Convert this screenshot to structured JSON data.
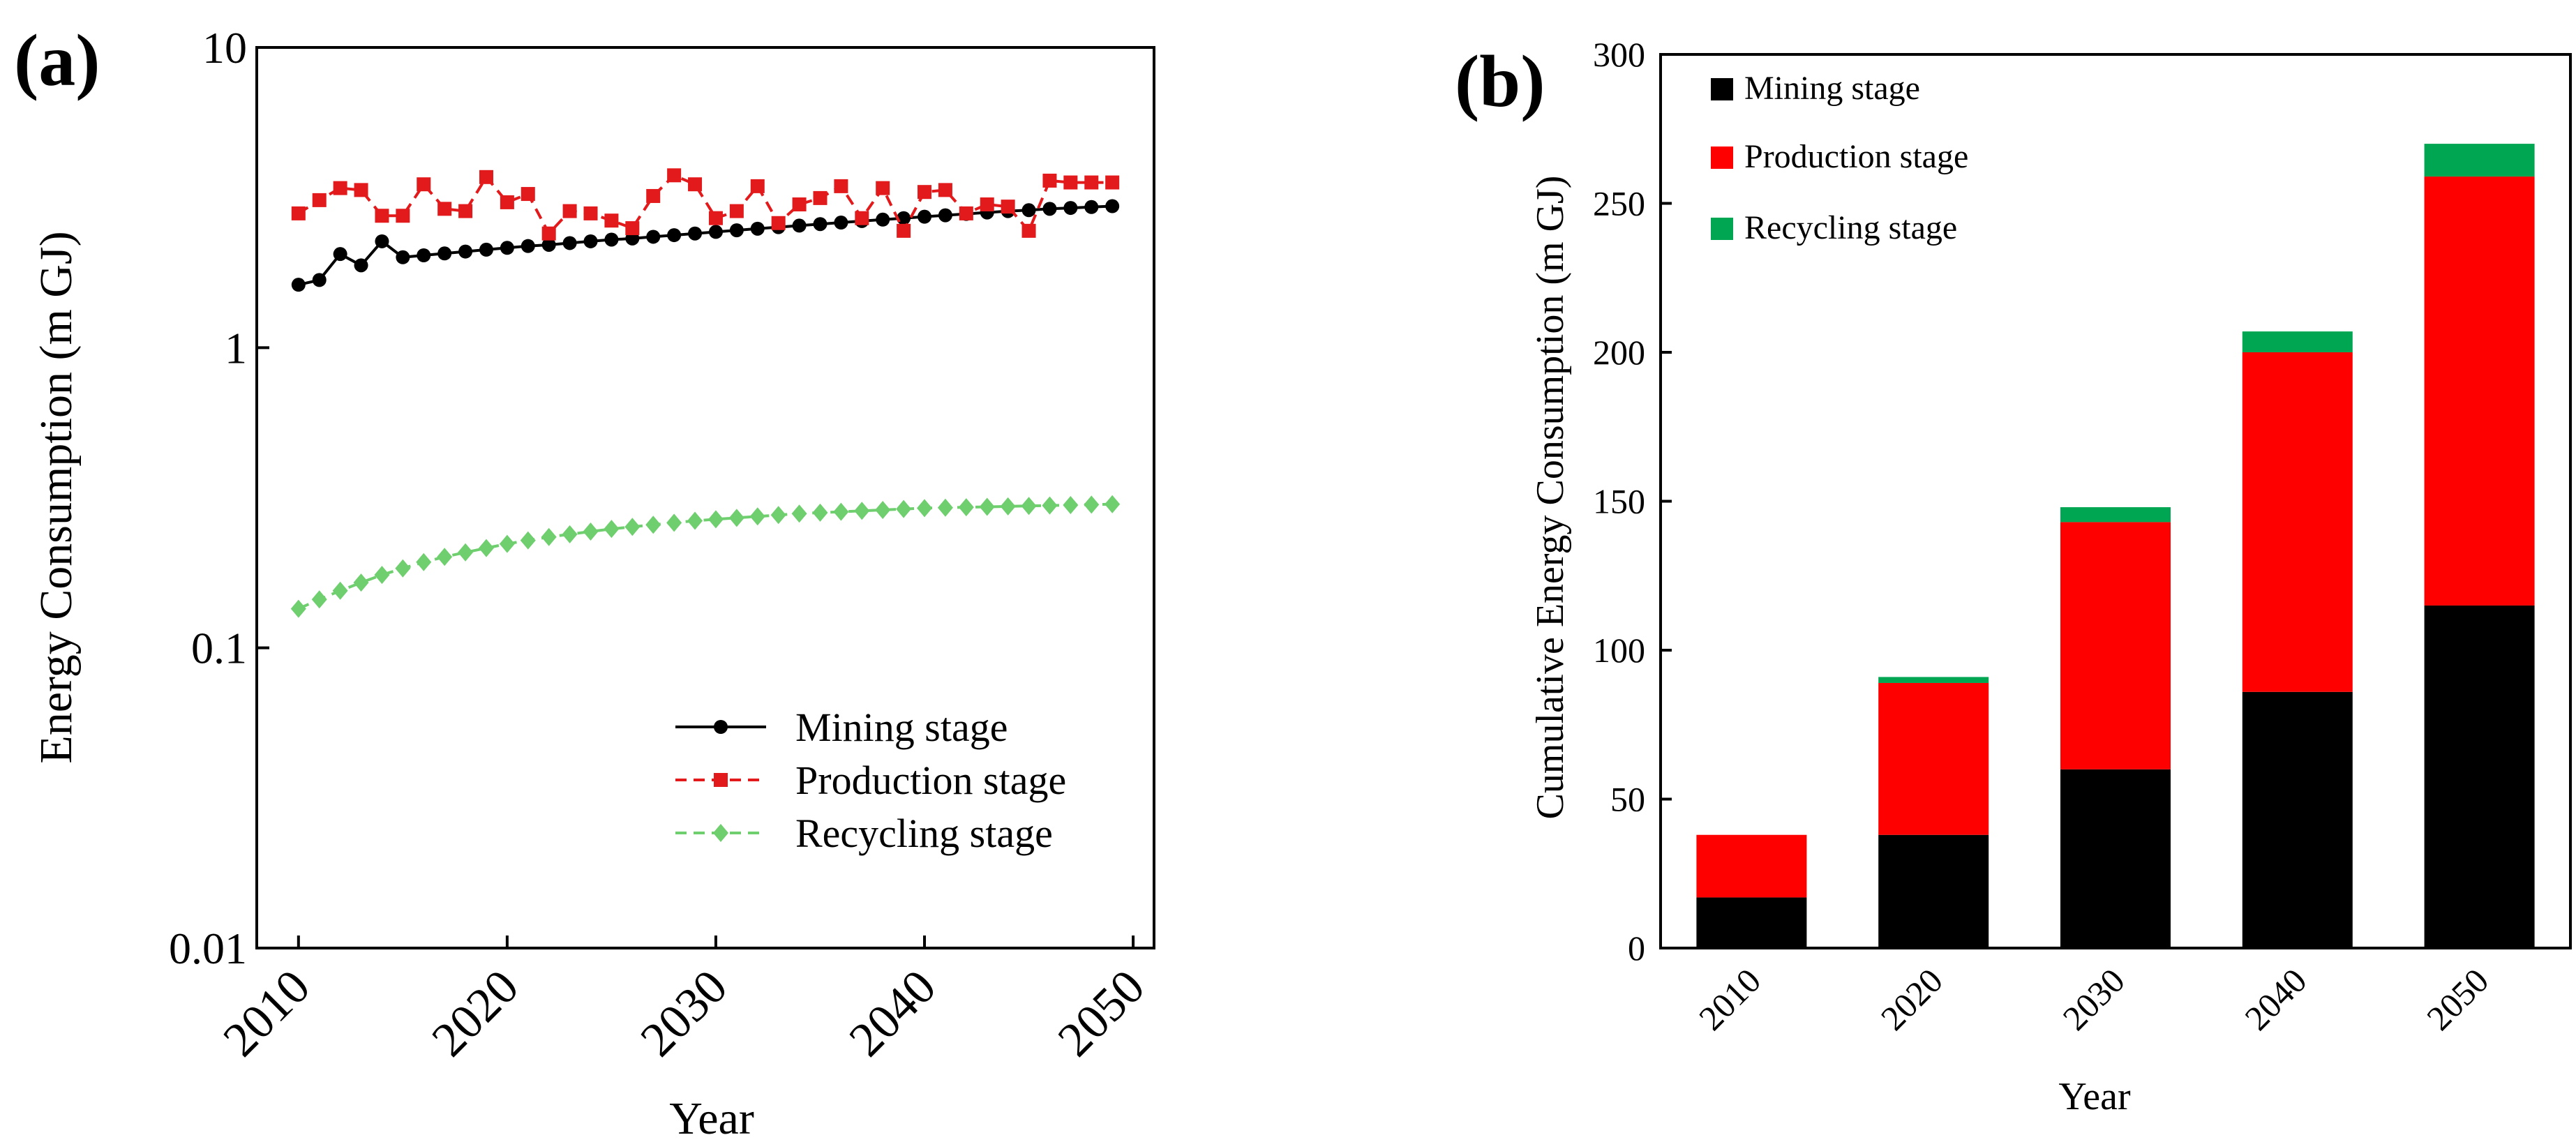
{
  "figure": {
    "panel_a_label": "(a)",
    "panel_b_label": "(b)"
  },
  "chart_data": [
    {
      "type": "line",
      "panel": "(a)",
      "title": "",
      "xlabel": "Year",
      "ylabel": "Energy Consumption (m GJ)",
      "yscale": "log",
      "ylim": [
        0.01,
        10
      ],
      "xlim": [
        2008,
        2051
      ],
      "yticks": [
        0.01,
        0.1,
        1,
        10
      ],
      "ytick_labels": [
        "0.01",
        "0.1",
        "1",
        "10"
      ],
      "xticks": [
        2010,
        2020,
        2030,
        2040,
        2050
      ],
      "xtick_labels": [
        "2010",
        "2020",
        "2030",
        "2040",
        "2050"
      ],
      "grid": false,
      "legend_position": "bottom-right",
      "x": [
        2010,
        2011,
        2012,
        2013,
        2014,
        2015,
        2016,
        2017,
        2018,
        2019,
        2020,
        2021,
        2022,
        2023,
        2024,
        2025,
        2026,
        2027,
        2028,
        2029,
        2030,
        2031,
        2032,
        2033,
        2034,
        2035,
        2036,
        2037,
        2038,
        2039,
        2040,
        2041,
        2042,
        2043,
        2044,
        2045,
        2046,
        2047,
        2048,
        2049
      ],
      "series": [
        {
          "name": "Mining stage",
          "color": "#000000",
          "line_style": "solid",
          "marker": "circle",
          "values": [
            1.62,
            1.68,
            2.05,
            1.88,
            2.26,
            2.0,
            2.03,
            2.06,
            2.09,
            2.12,
            2.15,
            2.18,
            2.2,
            2.23,
            2.26,
            2.29,
            2.31,
            2.34,
            2.37,
            2.4,
            2.43,
            2.46,
            2.49,
            2.52,
            2.55,
            2.58,
            2.61,
            2.64,
            2.67,
            2.7,
            2.73,
            2.76,
            2.79,
            2.82,
            2.85,
            2.87,
            2.9,
            2.92,
            2.94,
            2.96
          ]
        },
        {
          "name": "Production stage",
          "color": "#e31a1c",
          "line_style": "dashed",
          "marker": "square",
          "values": [
            2.8,
            3.1,
            3.4,
            3.35,
            2.75,
            2.75,
            3.5,
            2.9,
            2.85,
            3.7,
            3.05,
            3.25,
            2.4,
            2.85,
            2.8,
            2.65,
            2.5,
            3.2,
            3.75,
            3.5,
            2.7,
            2.85,
            3.45,
            2.6,
            3.0,
            3.15,
            3.45,
            2.7,
            3.4,
            2.45,
            3.3,
            3.35,
            2.8,
            3.0,
            2.95,
            2.45,
            3.6,
            3.55,
            3.55,
            3.55
          ]
        },
        {
          "name": "Recycling stage",
          "color": "#6fcf6f",
          "line_style": "dashed",
          "marker": "diamond",
          "values": [
            0.135,
            0.145,
            0.155,
            0.165,
            0.175,
            0.184,
            0.193,
            0.201,
            0.208,
            0.215,
            0.222,
            0.228,
            0.234,
            0.239,
            0.244,
            0.249,
            0.253,
            0.257,
            0.261,
            0.265,
            0.268,
            0.271,
            0.274,
            0.277,
            0.28,
            0.282,
            0.284,
            0.286,
            0.288,
            0.29,
            0.292,
            0.293,
            0.294,
            0.295,
            0.296,
            0.297,
            0.298,
            0.299,
            0.3,
            0.301
          ]
        }
      ]
    },
    {
      "type": "bar",
      "stacked": true,
      "panel": "(b)",
      "title": "",
      "xlabel": "Year",
      "ylabel": "Cumulative Energy Consumption (m GJ)",
      "ylim": [
        0,
        300
      ],
      "yticks": [
        0,
        50,
        100,
        150,
        200,
        250,
        300
      ],
      "ytick_labels": [
        "0",
        "50",
        "100",
        "150",
        "200",
        "250",
        "300"
      ],
      "grid": false,
      "legend_position": "top-left",
      "categories": [
        "2010",
        "2020",
        "2030",
        "2040",
        "2050"
      ],
      "series": [
        {
          "name": "Mining stage",
          "color": "#000000",
          "values": [
            17,
            38,
            60,
            86,
            115
          ]
        },
        {
          "name": "Production stage",
          "color": "#ff0000",
          "values": [
            21,
            51,
            83,
            114,
            144
          ]
        },
        {
          "name": "Recycling stage",
          "color": "#00a651",
          "values": [
            0,
            2,
            5,
            7,
            11
          ]
        }
      ]
    }
  ]
}
